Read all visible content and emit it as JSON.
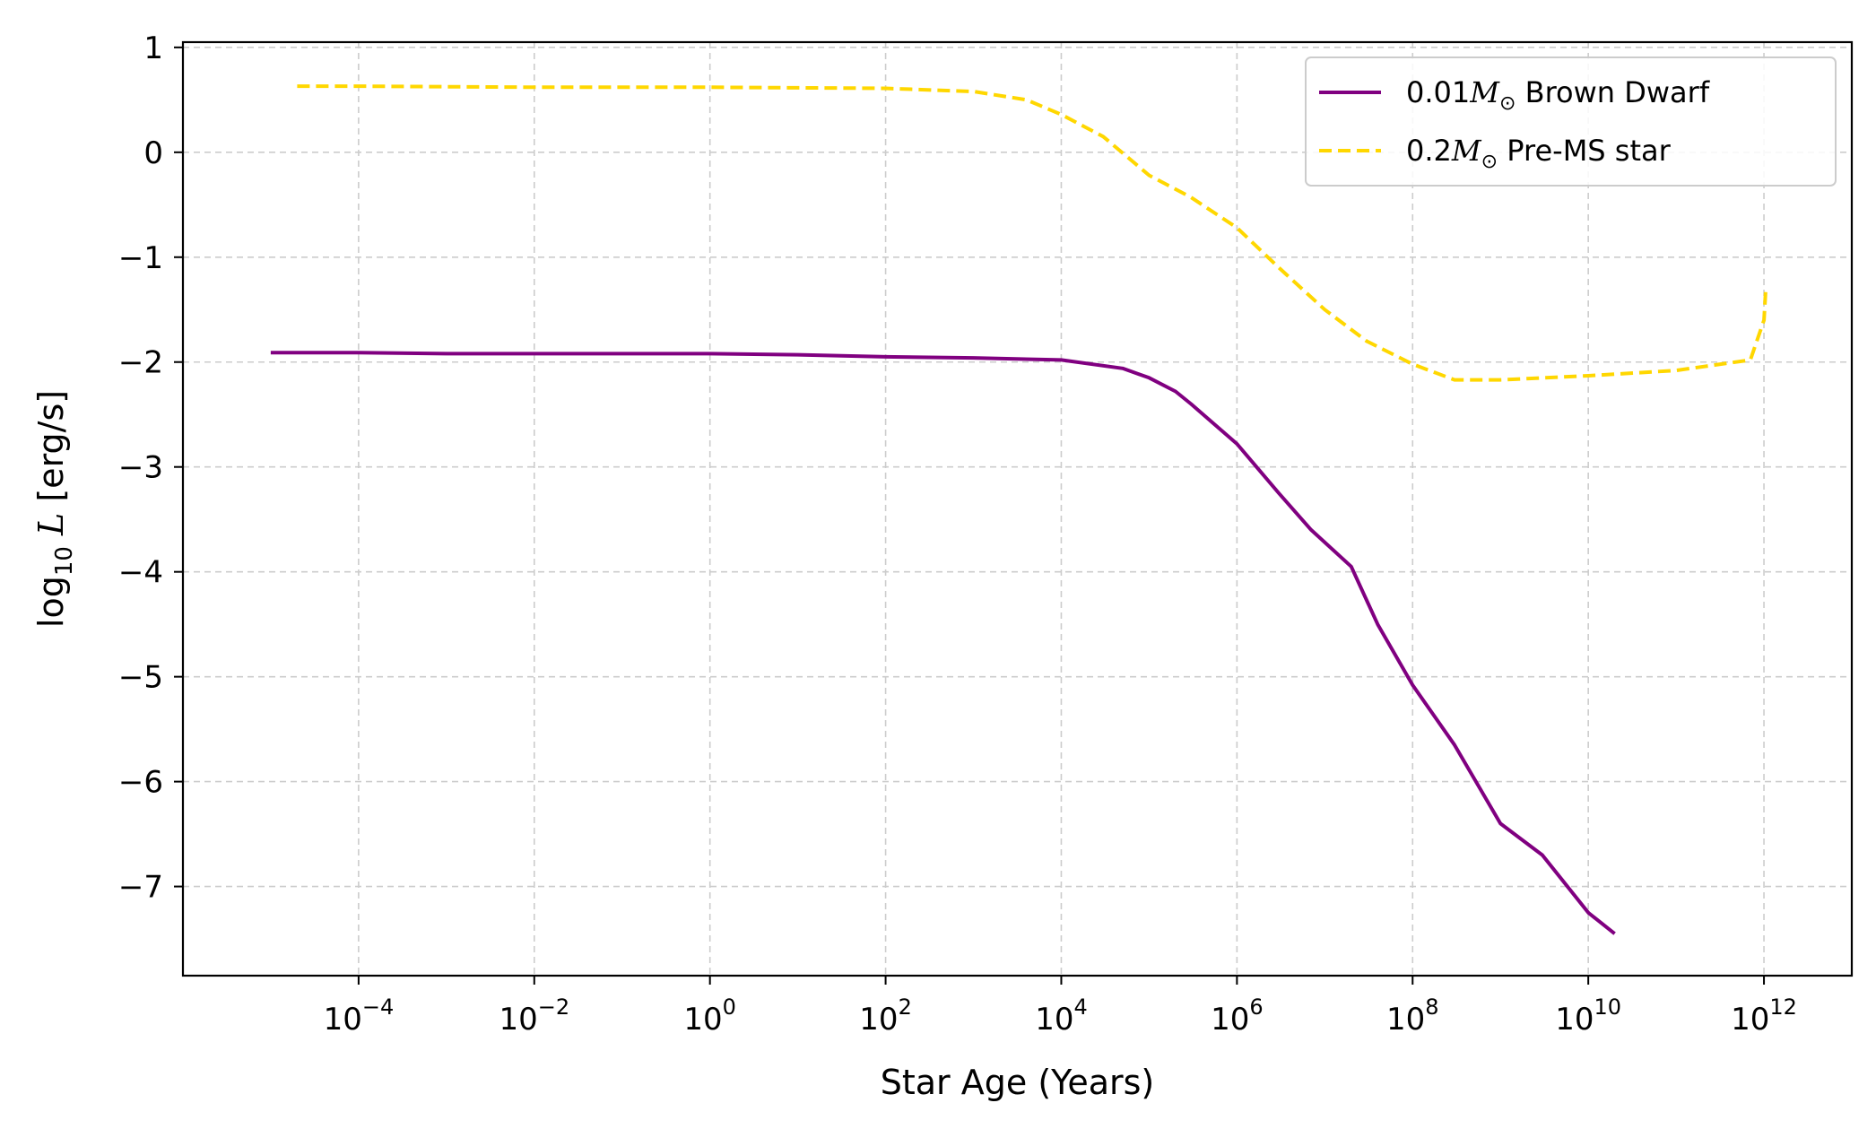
{
  "chart_data": {
    "type": "line",
    "title": "",
    "xlabel": "Star Age (Years)",
    "ylabel": "log10 L [erg/s]",
    "x_scale": "log",
    "xlim": [
      1e-06,
      10000000000000.0
    ],
    "ylim": [
      -7.85,
      1.05
    ],
    "x_ticks": [
      {
        "value": 0.0001,
        "base": "10",
        "exp": "−4"
      },
      {
        "value": 0.01,
        "base": "10",
        "exp": "−2"
      },
      {
        "value": 1,
        "base": "10",
        "exp": "0"
      },
      {
        "value": 100.0,
        "base": "10",
        "exp": "2"
      },
      {
        "value": 10000.0,
        "base": "10",
        "exp": "4"
      },
      {
        "value": 1000000.0,
        "base": "10",
        "exp": "6"
      },
      {
        "value": 100000000.0,
        "base": "10",
        "exp": "8"
      },
      {
        "value": 10000000000.0,
        "base": "10",
        "exp": "10"
      },
      {
        "value": 1000000000000.0,
        "base": "10",
        "exp": "12"
      }
    ],
    "y_ticks": [
      {
        "value": 1,
        "label": "1"
      },
      {
        "value": 0,
        "label": "0"
      },
      {
        "value": -1,
        "label": "−1"
      },
      {
        "value": -2,
        "label": "−2"
      },
      {
        "value": -3,
        "label": "−3"
      },
      {
        "value": -4,
        "label": "−4"
      },
      {
        "value": -5,
        "label": "−5"
      },
      {
        "value": -6,
        "label": "−6"
      },
      {
        "value": -7,
        "label": "−7"
      }
    ],
    "grid": true,
    "legend_position": "top-right",
    "series": [
      {
        "name": "0.01M⊙ Brown Dwarf",
        "legend_prefix": "0.01",
        "legend_suffix": " Brown Dwarf",
        "color": "#800080",
        "style": "solid",
        "x": [
          1e-05,
          0.0001,
          0.001,
          0.01,
          0.1,
          1,
          10.0,
          100.0,
          1000.0,
          10000.0,
          50000.0,
          100000.0,
          200000.0,
          300000.0,
          1000000.0,
          3000000.0,
          7000000.0,
          20000000.0,
          40000000.0,
          100000000.0,
          300000000.0,
          1000000000.0,
          3000000000.0,
          10000000000.0,
          20000000000.0
        ],
        "y": [
          -1.91,
          -1.91,
          -1.92,
          -1.92,
          -1.92,
          -1.92,
          -1.93,
          -1.95,
          -1.96,
          -1.98,
          -2.06,
          -2.15,
          -2.28,
          -2.4,
          -2.78,
          -3.25,
          -3.6,
          -3.95,
          -4.5,
          -5.08,
          -5.65,
          -6.4,
          -6.7,
          -7.25,
          -7.45
        ]
      },
      {
        "name": "0.2M⊙ Pre-MS star",
        "legend_prefix": "0.2",
        "legend_suffix": " Pre-MS star",
        "color": "#ffd700",
        "style": "dashed",
        "x": [
          2e-05,
          0.0001,
          0.01,
          1,
          100.0,
          1000.0,
          4000.0,
          10000.0,
          30000.0,
          100000.0,
          300000.0,
          1000000.0,
          3000000.0,
          10000000.0,
          30000000.0,
          100000000.0,
          300000000.0,
          1000000000.0,
          10000000000.0,
          100000000000.0,
          700000000000.0,
          1000000000000.0,
          1050000000000.0
        ],
        "y": [
          0.63,
          0.63,
          0.62,
          0.62,
          0.61,
          0.58,
          0.5,
          0.36,
          0.15,
          -0.22,
          -0.43,
          -0.72,
          -1.1,
          -1.5,
          -1.8,
          -2.02,
          -2.17,
          -2.17,
          -2.13,
          -2.08,
          -1.98,
          -1.6,
          -1.3
        ]
      }
    ]
  }
}
